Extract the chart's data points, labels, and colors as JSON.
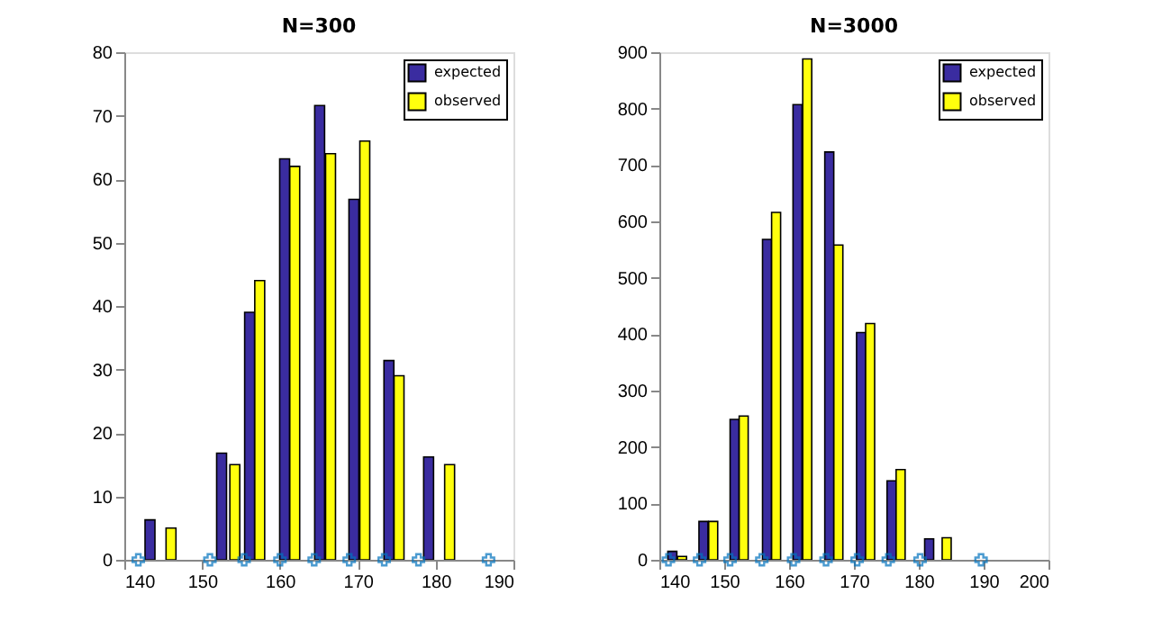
{
  "chart_data": [
    {
      "type": "bar",
      "title": "N=300",
      "legend": "top right",
      "xlim": [
        140,
        190
      ],
      "xticks": [
        140,
        150,
        160,
        170,
        180,
        190
      ],
      "ylim": [
        0,
        80
      ],
      "yticks": [
        0,
        10,
        20,
        30,
        40,
        50,
        60,
        70,
        80
      ],
      "grid": false,
      "series": [
        {
          "name": "expected",
          "color": "#3a2ca0",
          "x": [
            143.3,
            152.5,
            156.1,
            160.6,
            165.1,
            169.5,
            174.0,
            179.1
          ],
          "values": [
            6.3,
            16.8,
            39,
            63.2,
            71.6,
            56.8,
            31.4,
            16.2
          ]
        },
        {
          "name": "observed",
          "color": "#ffff0d",
          "x": [
            146.0,
            154.2,
            157.4,
            161.9,
            166.5,
            170.9,
            175.3,
            181.8
          ],
          "values": [
            5,
            15,
            44,
            62,
            64,
            66,
            29,
            15
          ]
        },
        {
          "type": "scatter",
          "marker": "cross",
          "color": "#0072bd",
          "x": [
            141.8,
            151.0,
            155.4,
            160.0,
            164.4,
            168.9,
            173.4,
            177.8,
            186.8
          ],
          "values": [
            0,
            0,
            0,
            0,
            0,
            0,
            0,
            0,
            0
          ]
        }
      ]
    },
    {
      "type": "bar",
      "title": "N=3000",
      "legend": "top right",
      "xlim": [
        140,
        200
      ],
      "xticks": [
        140,
        150,
        160,
        170,
        180,
        190,
        200
      ],
      "ylim": [
        0,
        900
      ],
      "yticks": [
        0,
        100,
        200,
        300,
        400,
        500,
        600,
        700,
        800,
        900
      ],
      "grid": false,
      "series": [
        {
          "name": "expected",
          "color": "#3a2ca0",
          "x": [
            142.0,
            146.8,
            151.6,
            156.6,
            161.3,
            166.2,
            171.1,
            175.8,
            181.6
          ],
          "values": [
            15,
            68,
            249,
            568,
            807,
            723,
            403,
            140,
            37
          ]
        },
        {
          "name": "observed",
          "color": "#ffff0d",
          "x": [
            143.5,
            148.3,
            153.0,
            158.0,
            162.8,
            167.6,
            172.5,
            177.2,
            184.3
          ],
          "values": [
            6,
            68,
            255,
            616,
            888,
            558,
            419,
            160,
            39
          ]
        },
        {
          "type": "scatter",
          "marker": "cross",
          "color": "#0072bd",
          "x": [
            141.4,
            146.2,
            150.9,
            155.8,
            160.7,
            165.7,
            170.5,
            175.3,
            180.2,
            189.6
          ],
          "values": [
            0,
            0,
            0,
            0,
            0,
            0,
            0,
            0,
            0,
            0
          ]
        }
      ]
    }
  ]
}
